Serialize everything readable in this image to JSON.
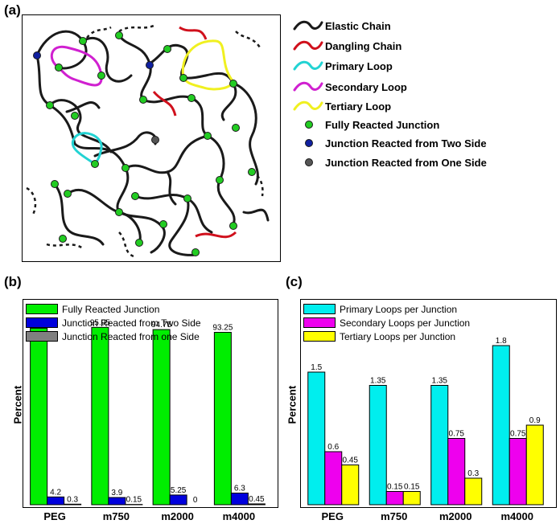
{
  "panels": {
    "a": "(a)",
    "b": "(b)",
    "c": "(c)"
  },
  "network_legend": [
    {
      "label": "Elastic Chain",
      "kind": "line",
      "color": "#1a1a1a"
    },
    {
      "label": "Dangling Chain",
      "kind": "line",
      "color": "#d0101c"
    },
    {
      "label": "Primary Loop",
      "kind": "line",
      "color": "#22d3d3"
    },
    {
      "label": "Secondary Loop",
      "kind": "line",
      "color": "#d020d0"
    },
    {
      "label": "Tertiary Loop",
      "kind": "line",
      "color": "#f0f020"
    },
    {
      "label": "Fully Reacted Junction",
      "kind": "dot",
      "color": "#22cc22"
    },
    {
      "label": "Junction Reacted from Two Side",
      "kind": "dot",
      "color": "#1020a0"
    },
    {
      "label": "Junction Reacted from One Side",
      "kind": "dot",
      "color": "#555555"
    }
  ],
  "chart_data": [
    {
      "type": "bar",
      "panel": "(b)",
      "categories": [
        "PEG",
        "m750",
        "m2000",
        "m4000"
      ],
      "series": [
        {
          "name": "Fully Reacted Junction",
          "color": "#00ee00",
          "values": [
            95.5,
            95.95,
            94.75,
            93.25
          ],
          "labels": [
            "95.5",
            "95.95",
            "94.75",
            "93.25"
          ]
        },
        {
          "name": "Junction Reacted from Two Side",
          "color": "#0000dd",
          "values": [
            4.2,
            3.9,
            5.25,
            6.3
          ],
          "labels": [
            "4.2",
            "3.9",
            "5.25",
            "6.3"
          ]
        },
        {
          "name": "Junction Reacted from one Side",
          "color": "#808080",
          "values": [
            0.3,
            0.15,
            0,
            0.45
          ],
          "labels": [
            "0.3",
            "0.15",
            "0",
            "0.45"
          ]
        }
      ],
      "ylabel": "Percent",
      "ylim": [
        0,
        110
      ],
      "legend_position": "top-left"
    },
    {
      "type": "bar",
      "panel": "(c)",
      "categories": [
        "PEG",
        "m750",
        "m2000",
        "m4000"
      ],
      "series": [
        {
          "name": "Primary Loops per Junction",
          "color": "#00eeee",
          "values": [
            1.5,
            1.35,
            1.35,
            1.8
          ],
          "labels": [
            "1.5",
            "1.35",
            "1.35",
            "1.8"
          ]
        },
        {
          "name": "Secondary Loops per Junction",
          "color": "#ee00ee",
          "values": [
            0.6,
            0.15,
            0.75,
            0.75
          ],
          "labels": [
            "0.6",
            "0.15",
            "0.75",
            "0.75"
          ]
        },
        {
          "name": "Tertiary Loops per Junction",
          "color": "#ffff00",
          "values": [
            0.45,
            0.15,
            0.3,
            0.9
          ],
          "labels": [
            "0.45",
            "0.15",
            "0.3",
            "0.9"
          ]
        }
      ],
      "ylabel": "Percent",
      "ylim": [
        0,
        2.3
      ],
      "legend_position": "top-left"
    }
  ]
}
